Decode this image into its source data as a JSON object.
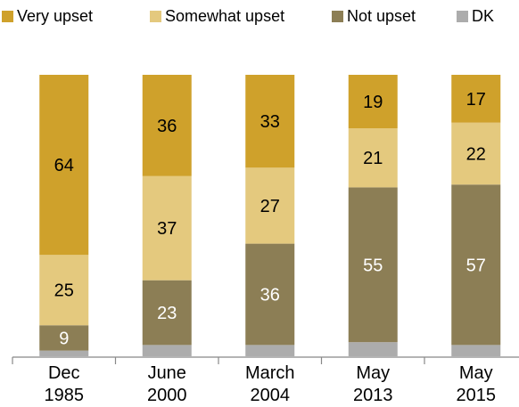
{
  "colors": {
    "very_upset": "#cfa12b",
    "somewhat_upset": "#e4c97e",
    "not_upset": "#8c7e55",
    "dk": "#acacac",
    "axis": "#888888"
  },
  "chart_data": {
    "type": "bar",
    "stacked": true,
    "categories": [
      "Dec 1985",
      "June 2000",
      "March 2004",
      "May 2013",
      "May 2015"
    ],
    "category_lines": [
      [
        "Dec",
        "1985"
      ],
      [
        "June",
        "2000"
      ],
      [
        "March",
        "2004"
      ],
      [
        "May",
        "2013"
      ],
      [
        "May",
        "2015"
      ]
    ],
    "series": [
      {
        "name": "DK",
        "key": "dk",
        "values": [
          2,
          4,
          4,
          5,
          4
        ],
        "label_color": ""
      },
      {
        "name": "Not upset",
        "key": "not_upset",
        "values": [
          9,
          23,
          36,
          55,
          57
        ],
        "label_color": "#ffffff"
      },
      {
        "name": "Somewhat upset",
        "key": "somewhat_upset",
        "values": [
          25,
          37,
          27,
          21,
          22
        ],
        "label_color": "#000000"
      },
      {
        "name": "Very upset",
        "key": "very_upset",
        "values": [
          64,
          36,
          33,
          19,
          17
        ],
        "label_color": "#000000"
      }
    ],
    "legend_order": [
      "Very upset",
      "Somewhat upset",
      "Not upset",
      "DK"
    ],
    "legend_position": "top",
    "ylim": [
      0,
      100
    ],
    "grid": false,
    "title": "",
    "xlabel": "",
    "ylabel": ""
  }
}
